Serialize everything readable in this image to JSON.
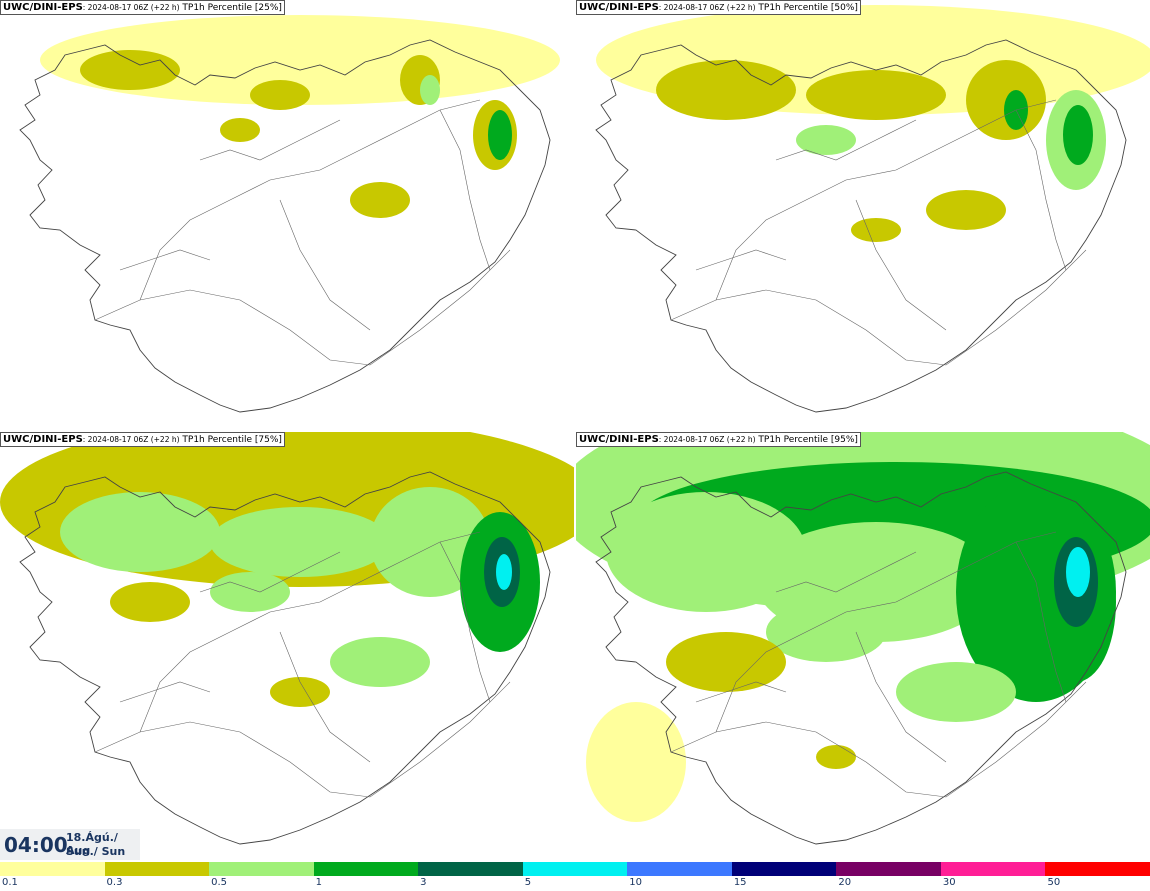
{
  "panels": [
    {
      "model": "UWC/DINI-EPS",
      "run": ": 2024-08-17 06Z (+22 h)",
      "param": " TP1h Percentile [25%]",
      "level": 0
    },
    {
      "model": "UWC/DINI-EPS",
      "run": ": 2024-08-17 06Z (+22 h)",
      "param": " TP1h Percentile [50%]",
      "level": 1
    },
    {
      "model": "UWC/DINI-EPS",
      "run": ": 2024-08-17 06Z (+22 h)",
      "param": " TP1h Percentile [75%]",
      "level": 2
    },
    {
      "model": "UWC/DINI-EPS",
      "run": ": 2024-08-17 06Z (+22 h)",
      "param": " TP1h Percentile [95%]",
      "level": 3
    }
  ],
  "valid_time": {
    "time": "04:00",
    "date_line1": "18.Ágú./ Aug",
    "date_line2": "Sun./ Sun"
  },
  "colorbar": {
    "colors": [
      "#ffff9c",
      "#c8c800",
      "#a0f078",
      "#00aa1e",
      "#006446",
      "#00f0f0",
      "#3c78ff",
      "#000078",
      "#780064",
      "#ff1e96",
      "#ff0000"
    ],
    "ticks": [
      "0.1",
      "0.3",
      "0.5",
      "1",
      "3",
      "5",
      "10",
      "15",
      "20",
      "30",
      "50"
    ]
  }
}
